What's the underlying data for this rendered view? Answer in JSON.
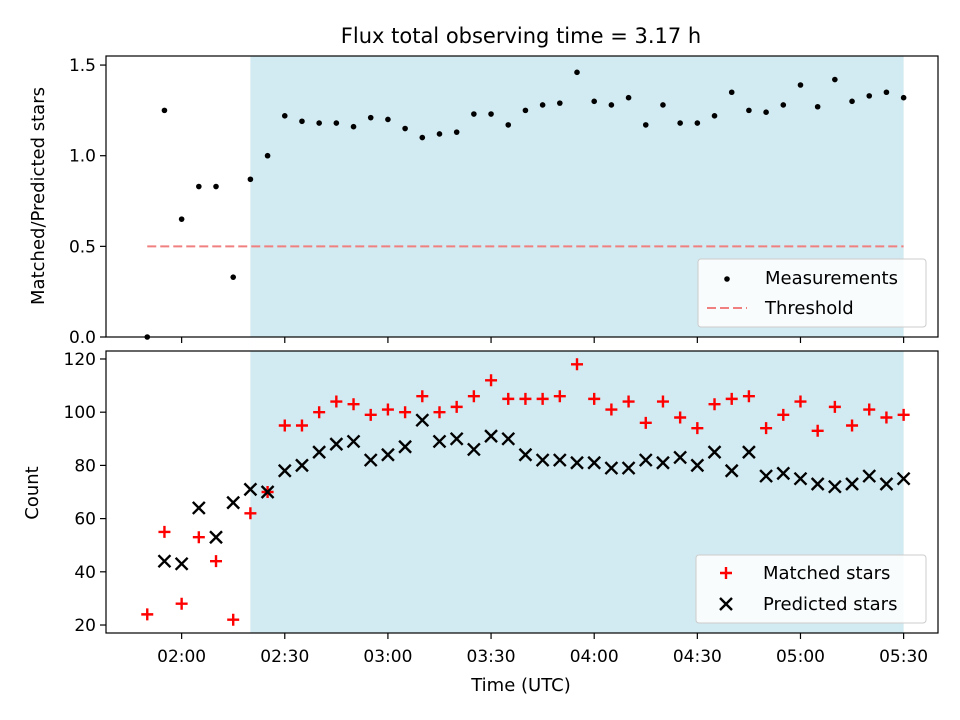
{
  "chart_data": [
    {
      "type": "scatter",
      "title": "Flux total observing time = 3.17 h",
      "xlabel": "",
      "ylabel": "Matched/Predicted stars",
      "ylim": [
        0,
        1.55
      ],
      "yticks": [
        "0.0",
        "0.5",
        "1.0",
        "1.5"
      ],
      "xlim": [
        "01:38",
        "05:40"
      ],
      "shaded_region": {
        "from": "02:20",
        "to": "05:30",
        "color": "#add8e6"
      },
      "threshold": {
        "name": "Threshold",
        "value": 0.5,
        "from": "01:50",
        "to": "05:30",
        "color": "#f08080"
      },
      "legend": {
        "position": "lower-right",
        "entries": [
          "Measurements",
          "Threshold"
        ]
      },
      "series": [
        {
          "name": "Measurements",
          "marker": "dot",
          "color": "#000000",
          "x": [
            "01:50",
            "01:55",
            "02:00",
            "02:05",
            "02:10",
            "02:15",
            "02:20",
            "02:25",
            "02:30",
            "02:35",
            "02:40",
            "02:45",
            "02:50",
            "02:55",
            "03:00",
            "03:05",
            "03:10",
            "03:15",
            "03:20",
            "03:25",
            "03:30",
            "03:35",
            "03:40",
            "03:45",
            "03:50",
            "03:55",
            "04:00",
            "04:05",
            "04:10",
            "04:15",
            "04:20",
            "04:25",
            "04:30",
            "04:35",
            "04:40",
            "04:45",
            "04:50",
            "04:55",
            "05:00",
            "05:05",
            "05:10",
            "05:15",
            "05:20",
            "05:25",
            "05:30"
          ],
          "values": [
            0.0,
            1.25,
            0.65,
            0.83,
            0.83,
            0.33,
            0.87,
            1.0,
            1.22,
            1.19,
            1.18,
            1.18,
            1.16,
            1.21,
            1.2,
            1.15,
            1.1,
            1.12,
            1.13,
            1.23,
            1.23,
            1.17,
            1.25,
            1.28,
            1.29,
            1.46,
            1.3,
            1.28,
            1.32,
            1.17,
            1.28,
            1.18,
            1.18,
            1.22,
            1.35,
            1.25,
            1.24,
            1.28,
            1.39,
            1.27,
            1.42,
            1.3,
            1.33,
            1.35,
            1.32
          ]
        }
      ]
    },
    {
      "type": "scatter",
      "title": "",
      "xlabel": "Time (UTC)",
      "ylabel": "Count",
      "ylim": [
        17,
        123
      ],
      "yticks": [
        "20",
        "40",
        "60",
        "80",
        "100",
        "120"
      ],
      "xlim": [
        "01:38",
        "05:40"
      ],
      "xticks": [
        "02:00",
        "02:30",
        "03:00",
        "03:30",
        "04:00",
        "04:30",
        "05:00",
        "05:30"
      ],
      "shaded_region": {
        "from": "02:20",
        "to": "05:30",
        "color": "#add8e6"
      },
      "legend": {
        "position": "lower-right",
        "entries": [
          "Matched stars",
          "Predicted stars"
        ]
      },
      "series": [
        {
          "name": "Matched stars",
          "marker": "plus",
          "color": "#ff0000",
          "x": [
            "01:50",
            "01:55",
            "02:00",
            "02:05",
            "02:10",
            "02:15",
            "02:20",
            "02:25",
            "02:30",
            "02:35",
            "02:40",
            "02:45",
            "02:50",
            "02:55",
            "03:00",
            "03:05",
            "03:10",
            "03:15",
            "03:20",
            "03:25",
            "03:30",
            "03:35",
            "03:40",
            "03:45",
            "03:50",
            "03:55",
            "04:00",
            "04:05",
            "04:10",
            "04:15",
            "04:20",
            "04:25",
            "04:30",
            "04:35",
            "04:40",
            "04:45",
            "04:50",
            "04:55",
            "05:00",
            "05:05",
            "05:10",
            "05:15",
            "05:20",
            "05:25",
            "05:30"
          ],
          "values": [
            24,
            55,
            28,
            53,
            44,
            22,
            62,
            70,
            95,
            95,
            100,
            104,
            103,
            99,
            101,
            100,
            106,
            100,
            102,
            106,
            112,
            105,
            105,
            105,
            106,
            118,
            105,
            101,
            104,
            96,
            104,
            98,
            94,
            103,
            105,
            106,
            94,
            99,
            104,
            93,
            102,
            95,
            101,
            98,
            99
          ]
        },
        {
          "name": "Predicted stars",
          "marker": "x",
          "color": "#000000",
          "x": [
            "01:55",
            "02:00",
            "02:05",
            "02:10",
            "02:15",
            "02:20",
            "02:25",
            "02:30",
            "02:35",
            "02:40",
            "02:45",
            "02:50",
            "02:55",
            "03:00",
            "03:05",
            "03:10",
            "03:15",
            "03:20",
            "03:25",
            "03:30",
            "03:35",
            "03:40",
            "03:45",
            "03:50",
            "03:55",
            "04:00",
            "04:05",
            "04:10",
            "04:15",
            "04:20",
            "04:25",
            "04:30",
            "04:35",
            "04:40",
            "04:45",
            "04:50",
            "04:55",
            "05:00",
            "05:05",
            "05:10",
            "05:15",
            "05:20",
            "05:25",
            "05:30"
          ],
          "values": [
            44,
            43,
            64,
            53,
            66,
            71,
            70,
            78,
            80,
            85,
            88,
            89,
            82,
            84,
            87,
            97,
            89,
            90,
            86,
            91,
            90,
            84,
            82,
            82,
            81,
            81,
            79,
            79,
            82,
            81,
            83,
            80,
            85,
            78,
            85,
            76,
            77,
            75,
            73,
            72,
            73,
            76,
            73,
            75
          ]
        }
      ]
    }
  ]
}
